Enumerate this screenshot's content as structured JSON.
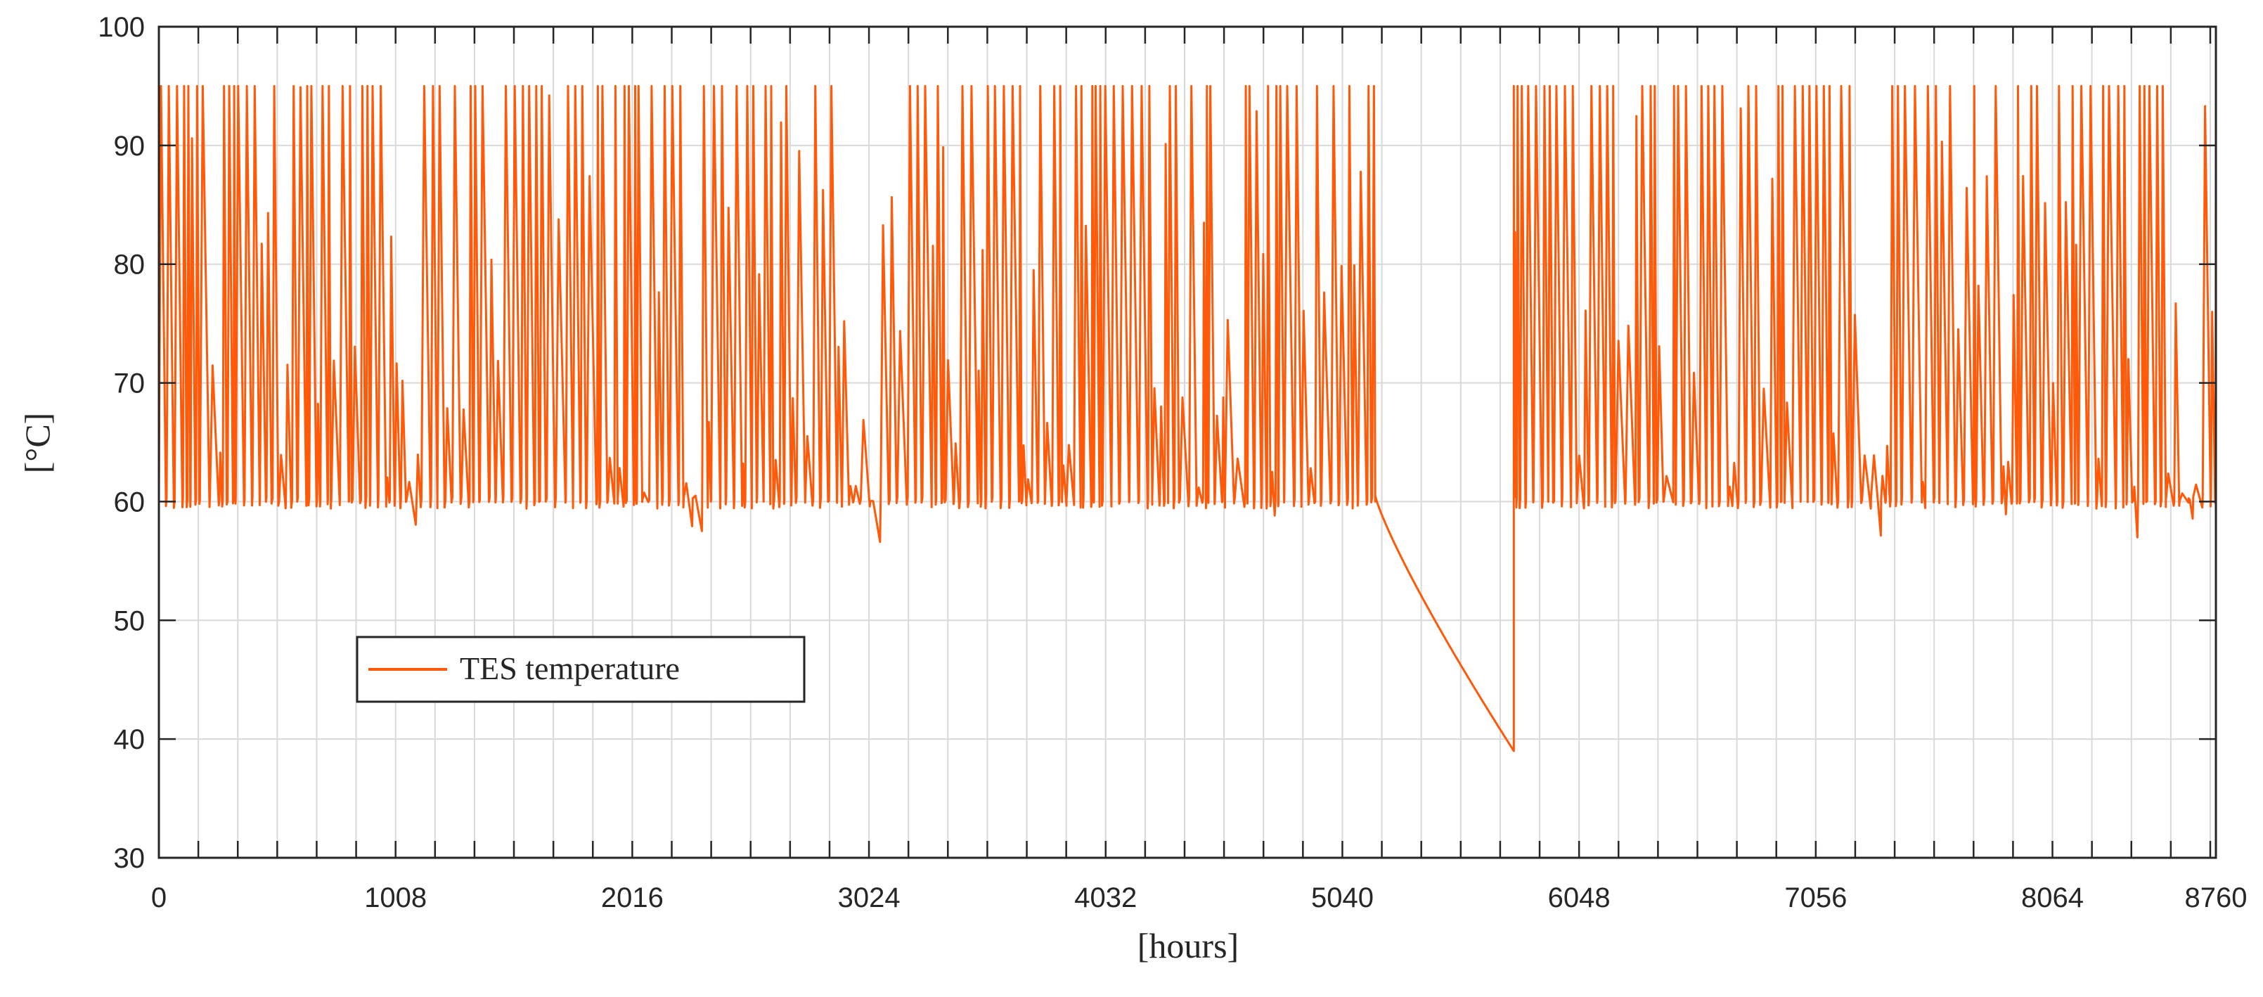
{
  "chart_data": {
    "type": "line",
    "title": "",
    "xlabel": "[hours]",
    "ylabel": "[°C]",
    "xlim": [
      0,
      8760
    ],
    "ylim": [
      30,
      100
    ],
    "x_ticks": [
      0,
      1008,
      2016,
      3024,
      4032,
      5040,
      6048,
      7056,
      8064,
      8760
    ],
    "y_ticks": [
      30,
      40,
      50,
      60,
      70,
      80,
      90,
      100
    ],
    "grid": true,
    "minor_x_grid_step_hours": 168,
    "legend_position": "lower-left",
    "series": [
      {
        "name": "TES temperature",
        "color": "#FF5A0A",
        "description_points": [
          [
            0,
            73
          ],
          [
            10,
            60
          ],
          [
            150,
            95
          ],
          [
            300,
            91
          ],
          [
            390,
            59
          ],
          [
            410,
            57.5
          ],
          [
            500,
            95
          ],
          [
            1000,
            95
          ],
          [
            1200,
            58
          ],
          [
            1250,
            57.5
          ],
          [
            1300,
            95
          ],
          [
            2200,
            95
          ],
          [
            2450,
            59
          ],
          [
            2500,
            95
          ],
          [
            3300,
            95
          ],
          [
            3500,
            59
          ],
          [
            3600,
            95
          ],
          [
            4000,
            95
          ],
          [
            4350,
            59.5
          ],
          [
            4500,
            95
          ],
          [
            5000,
            95
          ],
          [
            5100,
            72.5
          ],
          [
            5180,
            60.5
          ],
          [
            5500,
            49.5
          ],
          [
            5760,
            39
          ],
          [
            5770,
            95
          ],
          [
            6048,
            95
          ],
          [
            6300,
            59
          ],
          [
            6400,
            95
          ],
          [
            8500,
            95
          ],
          [
            8620,
            57.5
          ],
          [
            8700,
            95
          ],
          [
            8760,
            59
          ]
        ]
      }
    ],
    "regimes": [
      {
        "start": 0,
        "end": 5180,
        "baseline": 60,
        "peak": 95
      },
      {
        "start": 5180,
        "end": 5770,
        "decay_from": 60.5,
        "decay_to": 39
      },
      {
        "start": 5770,
        "end": 8760,
        "baseline": 60,
        "peak": 95
      }
    ]
  },
  "legend": {
    "label": "TES temperature"
  }
}
